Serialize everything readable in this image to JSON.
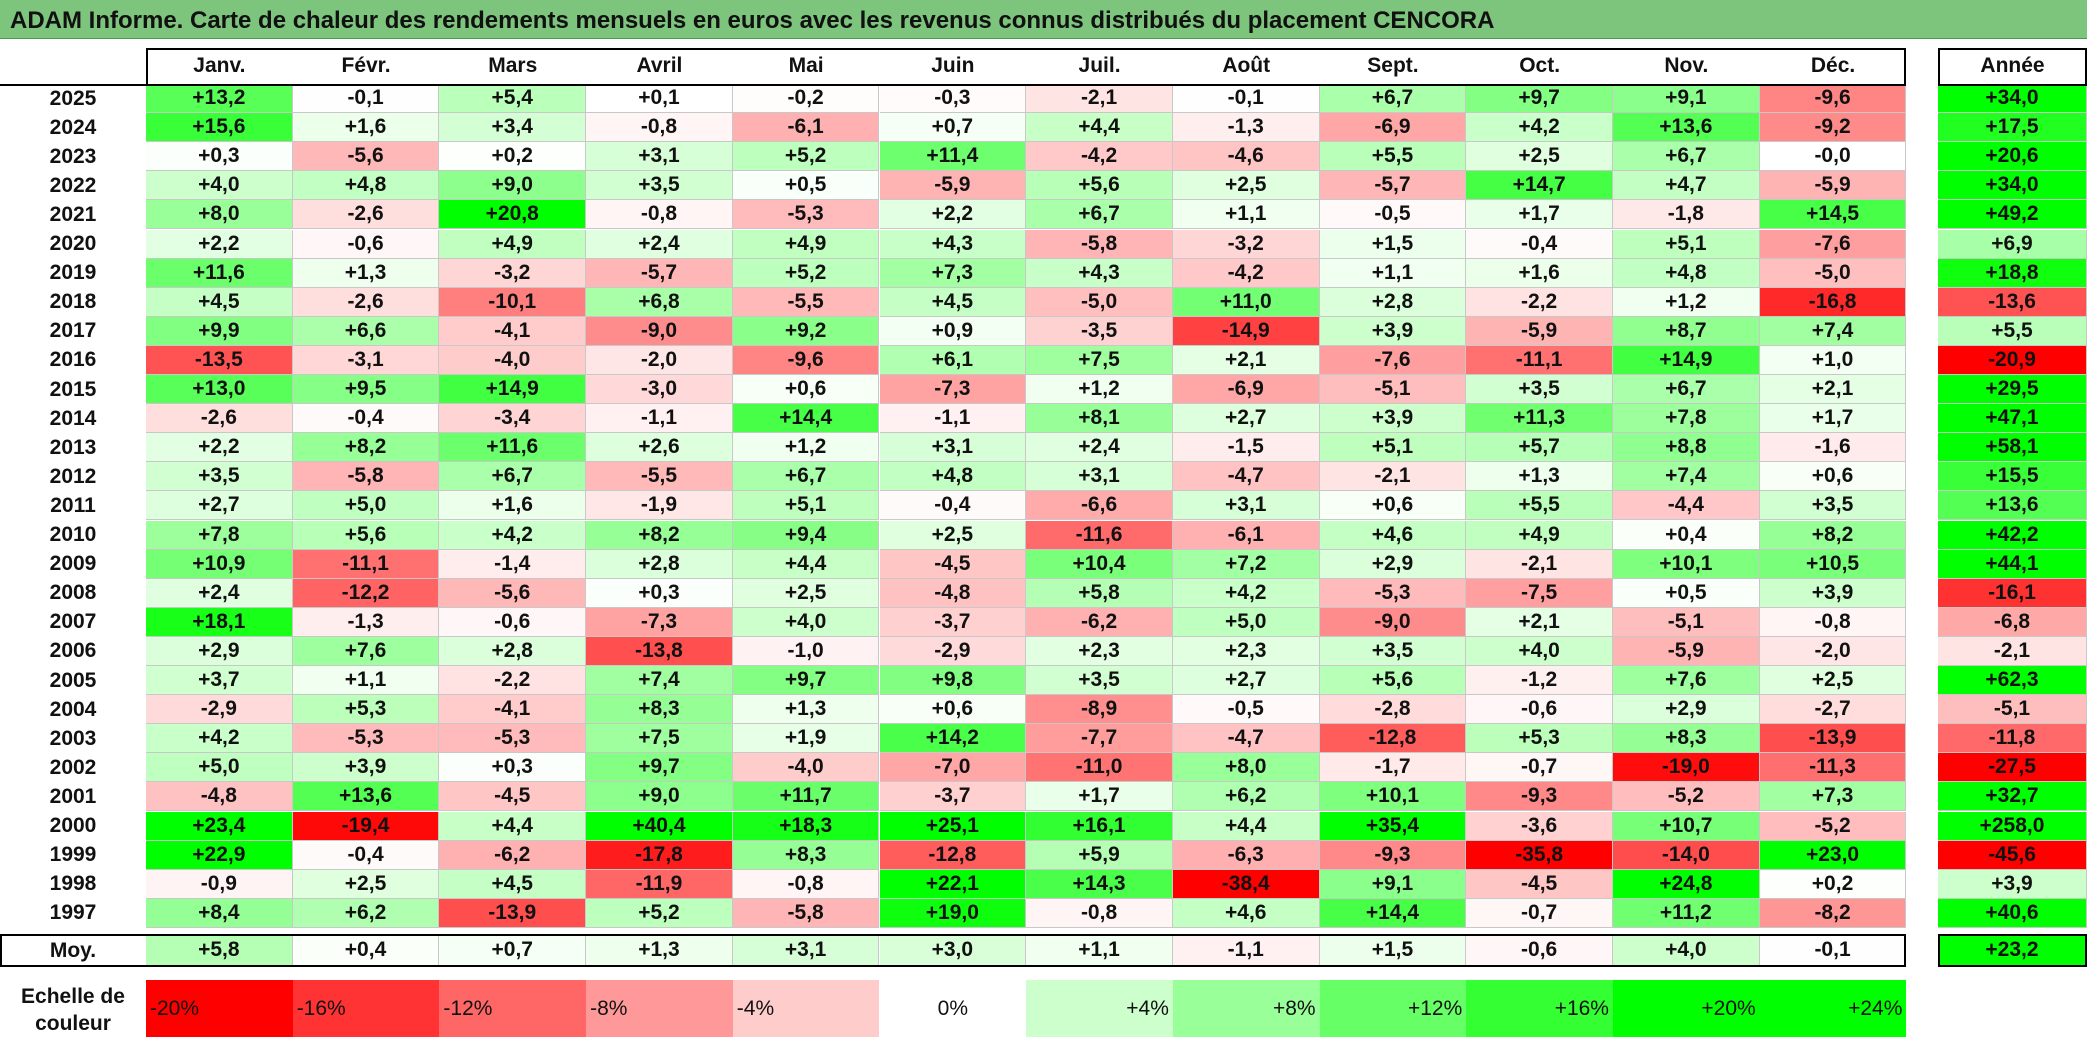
{
  "title": "ADAM Informe. Carte de chaleur des rendements mensuels en euros avec les revenus connus distribués du placement CENCORA",
  "chart_data": {
    "type": "heatmap",
    "months": [
      "Janv.",
      "Févr.",
      "Mars",
      "Avril",
      "Mai",
      "Juin",
      "Juil.",
      "Août",
      "Sept.",
      "Oct.",
      "Nov.",
      "Déc."
    ],
    "year_header": "Année",
    "rows": [
      {
        "year": "2025",
        "values": [
          "+13,2",
          "-0,1",
          "+5,4",
          "+0,1",
          "-0,2",
          "-0,3",
          "-2,1",
          "-0,1",
          "+6,7",
          "+9,7",
          "+9,1",
          "-9,6"
        ],
        "annual": "+34,0"
      },
      {
        "year": "2024",
        "values": [
          "+15,6",
          "+1,6",
          "+3,4",
          "-0,8",
          "-6,1",
          "+0,7",
          "+4,4",
          "-1,3",
          "-6,9",
          "+4,2",
          "+13,6",
          "-9,2"
        ],
        "annual": "+17,5"
      },
      {
        "year": "2023",
        "values": [
          "+0,3",
          "-5,6",
          "+0,2",
          "+3,1",
          "+5,2",
          "+11,4",
          "-4,2",
          "-4,6",
          "+5,5",
          "+2,5",
          "+6,7",
          "-0,0"
        ],
        "annual": "+20,6"
      },
      {
        "year": "2022",
        "values": [
          "+4,0",
          "+4,8",
          "+9,0",
          "+3,5",
          "+0,5",
          "-5,9",
          "+5,6",
          "+2,5",
          "-5,7",
          "+14,7",
          "+4,7",
          "-5,9"
        ],
        "annual": "+34,0"
      },
      {
        "year": "2021",
        "values": [
          "+8,0",
          "-2,6",
          "+20,8",
          "-0,8",
          "-5,3",
          "+2,2",
          "+6,7",
          "+1,1",
          "-0,5",
          "+1,7",
          "-1,8",
          "+14,5"
        ],
        "annual": "+49,2"
      },
      {
        "year": "2020",
        "values": [
          "+2,2",
          "-0,6",
          "+4,9",
          "+2,4",
          "+4,9",
          "+4,3",
          "-5,8",
          "-3,2",
          "+1,5",
          "-0,4",
          "+5,1",
          "-7,6"
        ],
        "annual": "+6,9"
      },
      {
        "year": "2019",
        "values": [
          "+11,6",
          "+1,3",
          "-3,2",
          "-5,7",
          "+5,2",
          "+7,3",
          "+4,3",
          "-4,2",
          "+1,1",
          "+1,6",
          "+4,8",
          "-5,0"
        ],
        "annual": "+18,8"
      },
      {
        "year": "2018",
        "values": [
          "+4,5",
          "-2,6",
          "-10,1",
          "+6,8",
          "-5,5",
          "+4,5",
          "-5,0",
          "+11,0",
          "+2,8",
          "-2,2",
          "+1,2",
          "-16,8"
        ],
        "annual": "-13,6"
      },
      {
        "year": "2017",
        "values": [
          "+9,9",
          "+6,6",
          "-4,1",
          "-9,0",
          "+9,2",
          "+0,9",
          "-3,5",
          "-14,9",
          "+3,9",
          "-5,9",
          "+8,7",
          "+7,4"
        ],
        "annual": "+5,5"
      },
      {
        "year": "2016",
        "values": [
          "-13,5",
          "-3,1",
          "-4,0",
          "-2,0",
          "-9,6",
          "+6,1",
          "+7,5",
          "+2,1",
          "-7,6",
          "-11,1",
          "+14,9",
          "+1,0"
        ],
        "annual": "-20,9"
      },
      {
        "year": "2015",
        "values": [
          "+13,0",
          "+9,5",
          "+14,9",
          "-3,0",
          "+0,6",
          "-7,3",
          "+1,2",
          "-6,9",
          "-5,1",
          "+3,5",
          "+6,7",
          "+2,1"
        ],
        "annual": "+29,5"
      },
      {
        "year": "2014",
        "values": [
          "-2,6",
          "-0,4",
          "-3,4",
          "-1,1",
          "+14,4",
          "-1,1",
          "+8,1",
          "+2,7",
          "+3,9",
          "+11,3",
          "+7,8",
          "+1,7"
        ],
        "annual": "+47,1"
      },
      {
        "year": "2013",
        "values": [
          "+2,2",
          "+8,2",
          "+11,6",
          "+2,6",
          "+1,2",
          "+3,1",
          "+2,4",
          "-1,5",
          "+5,1",
          "+5,7",
          "+8,8",
          "-1,6"
        ],
        "annual": "+58,1"
      },
      {
        "year": "2012",
        "values": [
          "+3,5",
          "-5,8",
          "+6,7",
          "-5,5",
          "+6,7",
          "+4,8",
          "+3,1",
          "-4,7",
          "-2,1",
          "+1,3",
          "+7,4",
          "+0,6"
        ],
        "annual": "+15,5"
      },
      {
        "year": "2011",
        "values": [
          "+2,7",
          "+5,0",
          "+1,6",
          "-1,9",
          "+5,1",
          "-0,4",
          "-6,6",
          "+3,1",
          "+0,6",
          "+5,5",
          "-4,4",
          "+3,5"
        ],
        "annual": "+13,6"
      },
      {
        "year": "2010",
        "values": [
          "+7,8",
          "+5,6",
          "+4,2",
          "+8,2",
          "+9,4",
          "+2,5",
          "-11,6",
          "-6,1",
          "+4,6",
          "+4,9",
          "+0,4",
          "+8,2"
        ],
        "annual": "+42,2"
      },
      {
        "year": "2009",
        "values": [
          "+10,9",
          "-11,1",
          "-1,4",
          "+2,8",
          "+4,4",
          "-4,5",
          "+10,4",
          "+7,2",
          "+2,9",
          "-2,1",
          "+10,1",
          "+10,5"
        ],
        "annual": "+44,1"
      },
      {
        "year": "2008",
        "values": [
          "+2,4",
          "-12,2",
          "-5,6",
          "+0,3",
          "+2,5",
          "-4,8",
          "+5,8",
          "+4,2",
          "-5,3",
          "-7,5",
          "+0,5",
          "+3,9"
        ],
        "annual": "-16,1"
      },
      {
        "year": "2007",
        "values": [
          "+18,1",
          "-1,3",
          "-0,6",
          "-7,3",
          "+4,0",
          "-3,7",
          "-6,2",
          "+5,0",
          "-9,0",
          "+2,1",
          "-5,1",
          "-0,8"
        ],
        "annual": "-6,8"
      },
      {
        "year": "2006",
        "values": [
          "+2,9",
          "+7,6",
          "+2,8",
          "-13,8",
          "-1,0",
          "-2,9",
          "+2,3",
          "+2,3",
          "+3,5",
          "+4,0",
          "-5,9",
          "-2,0"
        ],
        "annual": "-2,1"
      },
      {
        "year": "2005",
        "values": [
          "+3,7",
          "+1,1",
          "-2,2",
          "+7,4",
          "+9,7",
          "+9,8",
          "+3,5",
          "+2,7",
          "+5,6",
          "-1,2",
          "+7,6",
          "+2,5"
        ],
        "annual": "+62,3"
      },
      {
        "year": "2004",
        "values": [
          "-2,9",
          "+5,3",
          "-4,1",
          "+8,3",
          "+1,3",
          "+0,6",
          "-8,9",
          "-0,5",
          "-2,8",
          "-0,6",
          "+2,9",
          "-2,7"
        ],
        "annual": "-5,1"
      },
      {
        "year": "2003",
        "values": [
          "+4,2",
          "-5,3",
          "-5,3",
          "+7,5",
          "+1,9",
          "+14,2",
          "-7,7",
          "-4,7",
          "-12,8",
          "+5,3",
          "+8,3",
          "-13,9"
        ],
        "annual": "-11,8"
      },
      {
        "year": "2002",
        "values": [
          "+5,0",
          "+3,9",
          "+0,3",
          "+9,7",
          "-4,0",
          "-7,0",
          "-11,0",
          "+8,0",
          "-1,7",
          "-0,7",
          "-19,0",
          "-11,3"
        ],
        "annual": "-27,5"
      },
      {
        "year": "2001",
        "values": [
          "-4,8",
          "+13,6",
          "-4,5",
          "+9,0",
          "+11,7",
          "-3,7",
          "+1,7",
          "+6,2",
          "+10,1",
          "-9,3",
          "-5,2",
          "+7,3"
        ],
        "annual": "+32,7"
      },
      {
        "year": "2000",
        "values": [
          "+23,4",
          "-19,4",
          "+4,4",
          "+40,4",
          "+18,3",
          "+25,1",
          "+16,1",
          "+4,4",
          "+35,4",
          "-3,6",
          "+10,7",
          "-5,2"
        ],
        "annual": "+258,0"
      },
      {
        "year": "1999",
        "values": [
          "+22,9",
          "-0,4",
          "-6,2",
          "-17,8",
          "+8,3",
          "-12,8",
          "+5,9",
          "-6,3",
          "-9,3",
          "-35,8",
          "-14,0",
          "+23,0"
        ],
        "annual": "-45,6"
      },
      {
        "year": "1998",
        "values": [
          "-0,9",
          "+2,5",
          "+4,5",
          "-11,9",
          "-0,8",
          "+22,1",
          "+14,3",
          "-38,4",
          "+9,1",
          "-4,5",
          "+24,8",
          "+0,2"
        ],
        "annual": "+3,9"
      },
      {
        "year": "1997",
        "values": [
          "+8,4",
          "+6,2",
          "-13,9",
          "+5,2",
          "-5,8",
          "+19,0",
          "-0,8",
          "+4,6",
          "+14,4",
          "-0,7",
          "+11,2",
          "-8,2"
        ],
        "annual": "+40,6"
      }
    ],
    "average": {
      "label": "Moy.",
      "values": [
        "+5,8",
        "+0,4",
        "+0,7",
        "+1,3",
        "+3,1",
        "+3,0",
        "+1,1",
        "-1,1",
        "+1,5",
        "-0,6",
        "+4,0",
        "-0,1"
      ],
      "annual": "+23,2"
    },
    "scale": {
      "label": "Echelle de couleur",
      "steps": [
        {
          "label": "-20%",
          "value": -20
        },
        {
          "label": "-16%",
          "value": -16
        },
        {
          "label": "-12%",
          "value": -12
        },
        {
          "label": "-8%",
          "value": -8
        },
        {
          "label": "-4%",
          "value": -4
        },
        {
          "label": "0%",
          "value": 0
        },
        {
          "label": "+4%",
          "value": 4
        },
        {
          "label": "+8%",
          "value": 8
        },
        {
          "label": "+12%",
          "value": 12
        },
        {
          "label": "+16%",
          "value": 16
        },
        {
          "label": "+20%",
          "value": 20
        },
        {
          "label": "+24%",
          "value": 24
        }
      ]
    },
    "colors": {
      "negative": "#ff0000",
      "neutral": "#ffffff",
      "positive": "#00ff00"
    }
  }
}
